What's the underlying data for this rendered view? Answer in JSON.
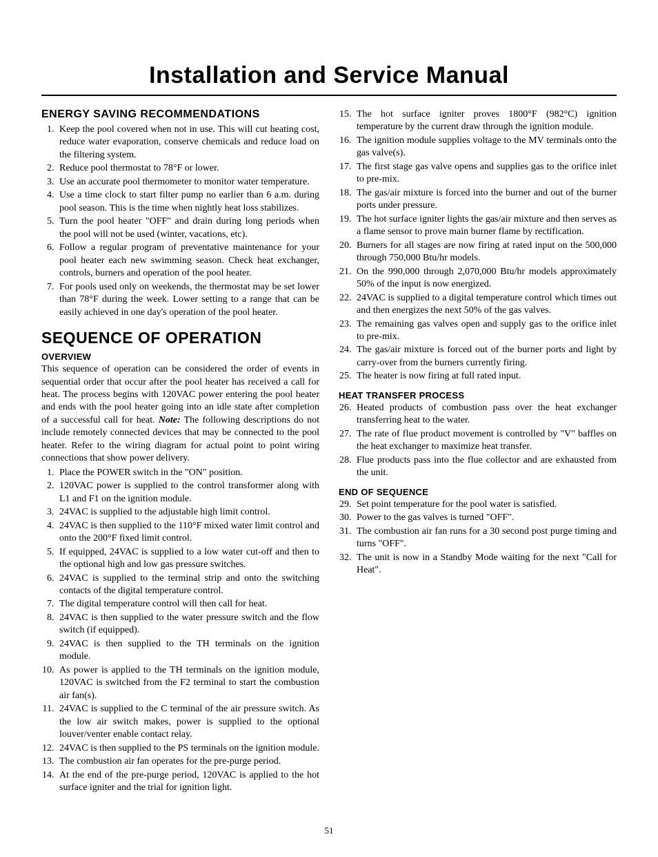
{
  "doc_title": "Installation and Service Manual",
  "page_number": "51",
  "energy": {
    "heading": "ENERGY SAVING RECOMMENDATIONS",
    "items": [
      "Keep the pool covered when not in use. This will cut heating cost, reduce water evaporation, conserve chemicals and reduce load on the filtering system.",
      "Reduce pool thermostat to 78°F or lower.",
      "Use an accurate pool thermometer to monitor water temperature.",
      "Use a time clock to start filter pump no earlier than 6 a.m. during pool season. This is the time when nightly heat loss stabilizes.",
      "Turn the pool heater \"OFF\" and drain during long periods when the pool will not be used (winter, vacations, etc).",
      "Follow a regular program of preventative maintenance for your pool heater each new swimming season. Check heat exchanger, controls, burners and operation of the pool heater.",
      "For pools used only on weekends, the thermostat may be set lower than 78°F during the week. Lower setting to a range that can be easily achieved in one day's operation of the pool heater."
    ]
  },
  "sequence": {
    "heading": "SEQUENCE OF OPERATION",
    "overview_heading": "OVERVIEW",
    "overview_pre": "This sequence of operation can be considered the order of events in sequential order that occur after the pool heater has received a call for heat.  The process begins with 120VAC power entering the pool heater and ends with the pool heater going into an idle state after completion of a successful call for heat.  ",
    "note_label": "Note:",
    "overview_post": " The following descriptions do not include remotely connected devices that may be connected to the pool heater.  Refer to the wiring diagram for actual point to point wiring connections that show power delivery.",
    "steps": [
      "Place the POWER switch in the \"ON\" position.",
      "120VAC power is supplied to the control transformer along with L1 and F1 on the ignition module.",
      "24VAC is supplied to the adjustable high limit control.",
      "24VAC is then supplied to the 110°F mixed water limit control and onto the 200°F fixed limit control.",
      "If equipped, 24VAC is supplied to a low water cut-off and then to the optional high and low gas pressure switches.",
      "24VAC is supplied to the terminal strip and onto the switching contacts of the digital temperature control.",
      "The digital temperature control will then call for heat.",
      "24VAC is then supplied to the water pressure switch and the flow switch (if equipped).",
      "24VAC is then supplied to the TH terminals on the ignition module.",
      "As power is applied to the TH terminals on the ignition module, 120VAC is switched from the F2 terminal to start the combustion air fan(s).",
      "24VAC is supplied to the C terminal of the air pressure switch.  As the low air switch makes, power is supplied to the optional louver/venter enable contact relay.",
      "24VAC is then supplied to the PS terminals on the ignition module.",
      "The combustion air fan operates for the pre-purge period.",
      "At the end of the pre-purge period, 120VAC is applied to the hot surface igniter and the trial for ignition light.",
      "The hot surface igniter proves 1800°F (982°C) ignition temperature by the current draw through the ignition module.",
      "The ignition module supplies voltage to the MV terminals onto the gas valve(s).",
      "The first stage gas valve opens and supplies gas to the orifice inlet to pre-mix.",
      "The gas/air mixture is forced into the burner and out of the burner ports under pressure.",
      "The hot surface igniter lights the gas/air mixture and then serves as a flame sensor to prove main burner flame by rectification.",
      "Burners for all stages are now firing at rated input on the 500,000 through 750,000 Btu/hr models.",
      "On the 990,000 through 2,070,000 Btu/hr models approximately 50% of the input is now energized.",
      "24VAC is supplied to a digital temperature control which times out and then energizes the next 50% of the gas valves.",
      "The remaining gas valves open and supply gas to the orifice inlet to pre-mix.",
      "The gas/air mixture is forced out of the burner ports and light by carry-over from the burners currently firing.",
      "The heater is now firing at full rated input."
    ],
    "heat_heading": "HEAT TRANSFER PROCESS",
    "heat_steps": [
      "Heated products of combustion pass over the heat exchanger transferring heat to the water.",
      "The rate of flue product movement is controlled by \"V\" baffles on the heat exchanger to maximize heat transfer.",
      "Flue products pass into the flue collector and are exhausted from the unit."
    ],
    "end_heading": "END OF SEQUENCE",
    "end_steps": [
      "Set point temperature for the pool water is satisfied.",
      "Power to the gas valves is turned \"OFF\".",
      "The combustion air fan runs for a 30 second post purge timing and turns \"OFF\".",
      "The unit is now in a Standby Mode waiting for the next \"Call for Heat\"."
    ]
  }
}
